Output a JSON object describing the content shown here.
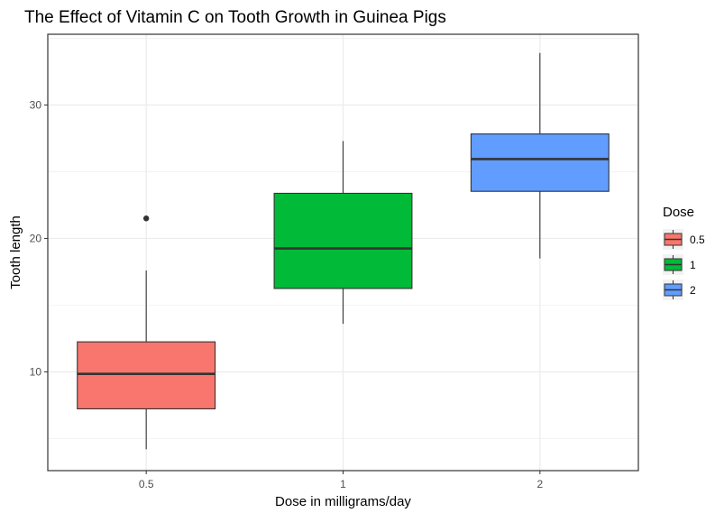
{
  "chart_data": {
    "type": "boxplot",
    "title": "The Effect of Vitamin C on Tooth Growth in Guinea Pigs",
    "xlabel": "Dose in milligrams/day",
    "ylabel": "Tooth length",
    "categories": [
      "0.5",
      "1",
      "2"
    ],
    "ylim": [
      2.6,
      35.3
    ],
    "y_ticks": [
      10,
      20,
      30
    ],
    "grid": true,
    "legend": {
      "title": "Dose",
      "placement": "right",
      "entries": [
        "0.5",
        "1",
        "2"
      ]
    },
    "series": [
      {
        "category": "0.5",
        "min": 4.2,
        "q1": 7.23,
        "median": 9.85,
        "q3": 12.25,
        "max": 17.6,
        "outliers": [
          21.5
        ],
        "color": "#F8766D"
      },
      {
        "category": "1",
        "min": 13.6,
        "q1": 16.25,
        "median": 19.25,
        "q3": 23.38,
        "max": 27.3,
        "outliers": [],
        "color": "#00BA38"
      },
      {
        "category": "2",
        "min": 18.5,
        "q1": 23.53,
        "median": 25.95,
        "q3": 27.83,
        "max": 33.9,
        "outliers": [],
        "color": "#619CFF"
      }
    ]
  }
}
